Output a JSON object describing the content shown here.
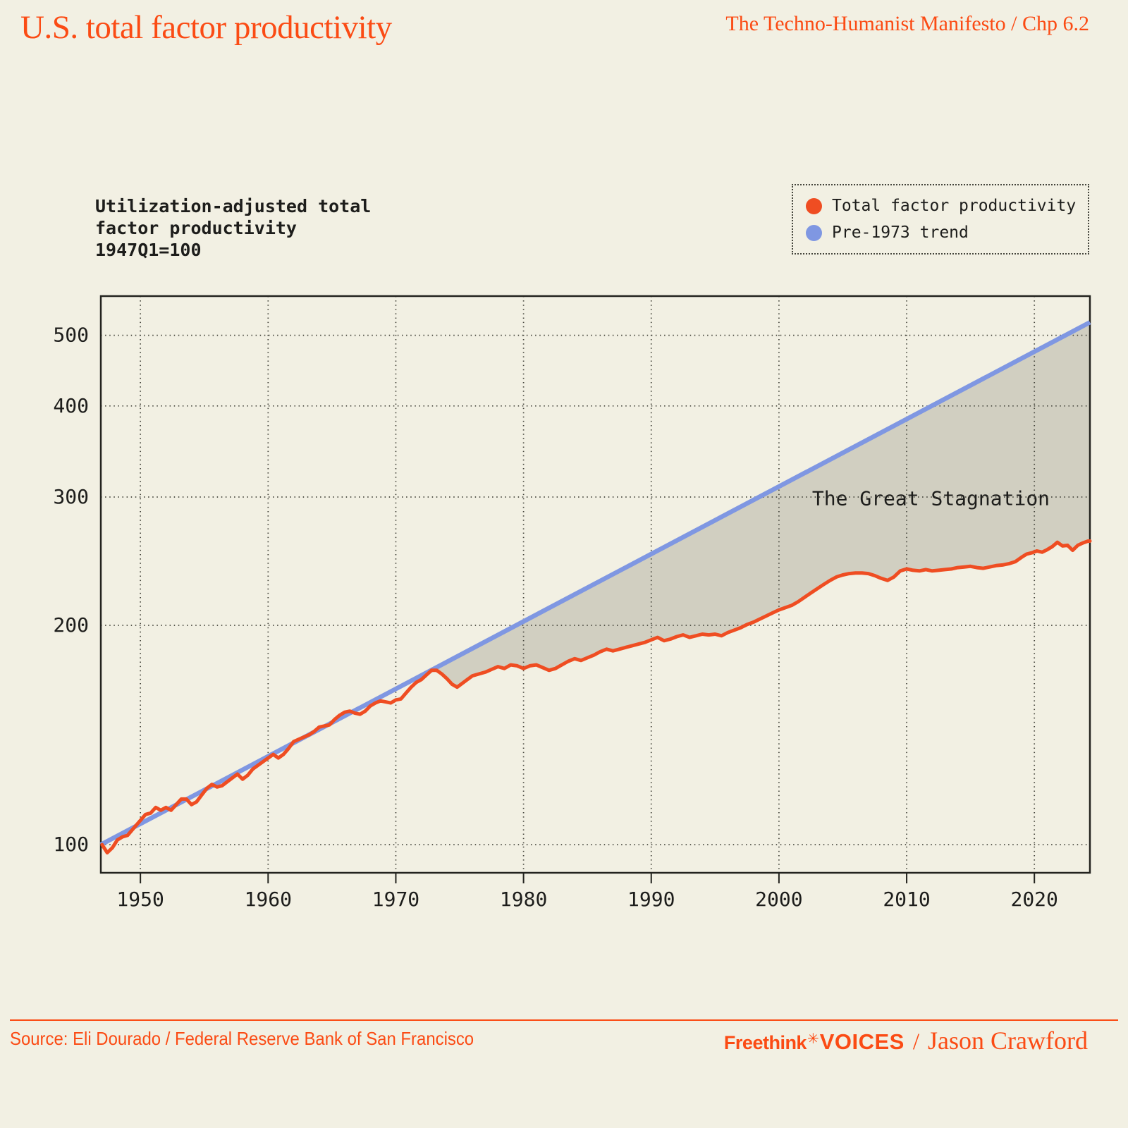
{
  "header": {
    "title": "U.S. total factor productivity",
    "reference": "The Techno-Humanist Manifesto / Chp 6.2"
  },
  "chart": {
    "subtitle_lines": [
      "Utilization-adjusted total",
      "factor productivity",
      "1947Q1=100"
    ],
    "legend": [
      {
        "label": "Total factor productivity",
        "color": "#EF4D22"
      },
      {
        "label": "Pre-1973 trend",
        "color": "#7F97E2"
      }
    ]
  },
  "colors": {
    "background": "#F2F0E3",
    "accent": "#FB4B14",
    "ink": "#1d1d1b",
    "tfp_line": "#EF4D22",
    "trend_line": "#7F97E2",
    "stagnation_fill": "#D1CFC1"
  },
  "chart_data": {
    "type": "line",
    "title": "Utilization-adjusted total factor productivity, 1947Q1=100",
    "xlabel": "",
    "ylabel": "",
    "y_scale": "log",
    "grid": true,
    "xlim": [
      1946.9,
      2024.35
    ],
    "ylim": [
      91.5,
      566
    ],
    "xticks": [
      1950,
      1960,
      1970,
      1980,
      1990,
      2000,
      2010,
      2020
    ],
    "yticks": [
      100,
      200,
      300,
      400,
      500
    ],
    "annotation": {
      "text": "The Great Stagnation",
      "year": 2011.9,
      "value": 299
    },
    "stagnation": {
      "from_year": 1972.8,
      "color": "#D1CFC1"
    },
    "series": [
      {
        "name": "Total factor productivity",
        "color": "#EF4D22",
        "points": [
          [
            1947.0,
            100
          ],
          [
            1947.4,
            97.5
          ],
          [
            1947.8,
            99
          ],
          [
            1948.2,
            101.5
          ],
          [
            1948.6,
            102.5
          ],
          [
            1949.0,
            103
          ],
          [
            1949.5,
            105.5
          ],
          [
            1950.0,
            108
          ],
          [
            1950.4,
            110
          ],
          [
            1950.8,
            110.5
          ],
          [
            1951.2,
            112.5
          ],
          [
            1951.6,
            111.5
          ],
          [
            1952.0,
            112.5
          ],
          [
            1952.4,
            111.5
          ],
          [
            1952.8,
            113.5
          ],
          [
            1953.2,
            115.5
          ],
          [
            1953.6,
            115.5
          ],
          [
            1954.0,
            113.5
          ],
          [
            1954.4,
            114.5
          ],
          [
            1954.8,
            117
          ],
          [
            1955.2,
            119.5
          ],
          [
            1955.6,
            121
          ],
          [
            1956.0,
            120
          ],
          [
            1956.4,
            120.5
          ],
          [
            1956.8,
            122
          ],
          [
            1957.2,
            123.5
          ],
          [
            1957.6,
            125
          ],
          [
            1958.0,
            123
          ],
          [
            1958.4,
            124.5
          ],
          [
            1958.8,
            127
          ],
          [
            1959.2,
            128.5
          ],
          [
            1959.6,
            130
          ],
          [
            1960.0,
            131.5
          ],
          [
            1960.4,
            133
          ],
          [
            1960.8,
            131.5
          ],
          [
            1961.2,
            133
          ],
          [
            1961.6,
            135.5
          ],
          [
            1962.0,
            138.5
          ],
          [
            1962.4,
            139.5
          ],
          [
            1962.8,
            140.5
          ],
          [
            1963.2,
            141.5
          ],
          [
            1963.6,
            143
          ],
          [
            1964.0,
            145
          ],
          [
            1964.4,
            145.5
          ],
          [
            1964.8,
            146
          ],
          [
            1965.2,
            148.5
          ],
          [
            1965.6,
            150.5
          ],
          [
            1966.0,
            152
          ],
          [
            1966.4,
            152.5
          ],
          [
            1966.8,
            151.5
          ],
          [
            1967.2,
            151
          ],
          [
            1967.6,
            152.5
          ],
          [
            1968.0,
            155
          ],
          [
            1968.4,
            156.5
          ],
          [
            1968.8,
            157.5
          ],
          [
            1969.2,
            157
          ],
          [
            1969.6,
            156.5
          ],
          [
            1970.0,
            158
          ],
          [
            1970.4,
            158.5
          ],
          [
            1970.8,
            161.5
          ],
          [
            1971.2,
            164.5
          ],
          [
            1971.6,
            167
          ],
          [
            1972.0,
            168.5
          ],
          [
            1972.4,
            171
          ],
          [
            1972.8,
            173.5
          ],
          [
            1973.2,
            173.5
          ],
          [
            1973.6,
            171.5
          ],
          [
            1974.0,
            169
          ],
          [
            1974.4,
            166
          ],
          [
            1974.8,
            164.5
          ],
          [
            1975.2,
            166.5
          ],
          [
            1975.6,
            168.5
          ],
          [
            1976.0,
            170.5
          ],
          [
            1976.5,
            171.5
          ],
          [
            1977.0,
            172.5
          ],
          [
            1977.5,
            174
          ],
          [
            1978.0,
            175.5
          ],
          [
            1978.5,
            174.5
          ],
          [
            1979.0,
            176.5
          ],
          [
            1979.5,
            176
          ],
          [
            1980.0,
            174.5
          ],
          [
            1980.5,
            176
          ],
          [
            1981.0,
            176.5
          ],
          [
            1981.5,
            175
          ],
          [
            1982.0,
            173.5
          ],
          [
            1982.5,
            174.5
          ],
          [
            1983.0,
            176.5
          ],
          [
            1983.5,
            178.5
          ],
          [
            1984.0,
            180
          ],
          [
            1984.5,
            179
          ],
          [
            1985.0,
            180.5
          ],
          [
            1985.5,
            182
          ],
          [
            1986.0,
            184
          ],
          [
            1986.5,
            185.5
          ],
          [
            1987.0,
            184.5
          ],
          [
            1987.5,
            185.5
          ],
          [
            1988.0,
            186.5
          ],
          [
            1988.5,
            187.5
          ],
          [
            1989.0,
            188.5
          ],
          [
            1989.5,
            189.5
          ],
          [
            1990.0,
            191
          ],
          [
            1990.5,
            192.5
          ],
          [
            1991.0,
            190.5
          ],
          [
            1991.5,
            191.5
          ],
          [
            1992.0,
            193
          ],
          [
            1992.5,
            194
          ],
          [
            1993.0,
            192.5
          ],
          [
            1993.5,
            193.5
          ],
          [
            1994.0,
            194.5
          ],
          [
            1994.5,
            194
          ],
          [
            1995.0,
            194.5
          ],
          [
            1995.5,
            193.5
          ],
          [
            1996.0,
            195.5
          ],
          [
            1996.5,
            197
          ],
          [
            1997.0,
            198.5
          ],
          [
            1997.5,
            200.5
          ],
          [
            1998.0,
            202
          ],
          [
            1998.5,
            204
          ],
          [
            1999.0,
            206
          ],
          [
            1999.5,
            208
          ],
          [
            2000.0,
            210
          ],
          [
            2000.5,
            211.5
          ],
          [
            2001.0,
            213
          ],
          [
            2001.5,
            215.5
          ],
          [
            2002.0,
            218.5
          ],
          [
            2002.5,
            221.5
          ],
          [
            2003.0,
            224.5
          ],
          [
            2003.5,
            227.5
          ],
          [
            2004.0,
            230.5
          ],
          [
            2004.5,
            233
          ],
          [
            2005.0,
            234.5
          ],
          [
            2005.5,
            235.5
          ],
          [
            2006.0,
            236
          ],
          [
            2006.5,
            236
          ],
          [
            2007.0,
            235.5
          ],
          [
            2007.5,
            234
          ],
          [
            2008.0,
            232
          ],
          [
            2008.5,
            230.5
          ],
          [
            2009.0,
            233
          ],
          [
            2009.5,
            237.5
          ],
          [
            2010.0,
            239
          ],
          [
            2010.5,
            238
          ],
          [
            2011.0,
            237.5
          ],
          [
            2011.5,
            238.5
          ],
          [
            2012.0,
            237.5
          ],
          [
            2012.5,
            238
          ],
          [
            2013.0,
            238.5
          ],
          [
            2013.5,
            239
          ],
          [
            2014.0,
            240
          ],
          [
            2014.5,
            240.5
          ],
          [
            2015.0,
            241
          ],
          [
            2015.5,
            240
          ],
          [
            2016.0,
            239.5
          ],
          [
            2016.5,
            240.5
          ],
          [
            2017.0,
            241.5
          ],
          [
            2017.5,
            242
          ],
          [
            2018.0,
            243
          ],
          [
            2018.5,
            244.5
          ],
          [
            2019.0,
            248
          ],
          [
            2019.4,
            250.5
          ],
          [
            2019.8,
            251.5
          ],
          [
            2020.2,
            253
          ],
          [
            2020.6,
            252
          ],
          [
            2021.0,
            254
          ],
          [
            2021.4,
            256.5
          ],
          [
            2021.8,
            260
          ],
          [
            2022.2,
            257
          ],
          [
            2022.6,
            257.5
          ],
          [
            2023.0,
            253.5
          ],
          [
            2023.4,
            257.5
          ],
          [
            2023.8,
            259.5
          ],
          [
            2024.2,
            261
          ],
          [
            2024.35,
            261
          ]
        ]
      },
      {
        "name": "Pre-1973 trend",
        "color": "#7F97E2",
        "points": [
          [
            1946.9,
            100
          ],
          [
            2024.35,
            521
          ]
        ]
      }
    ]
  },
  "footer": {
    "source": "Source: Eli Dourado / Federal Reserve Bank of San Francisco",
    "brand_freethink": "Freethink",
    "brand_star": "✳",
    "brand_voices": "VOICES",
    "brand_divider": "/",
    "author": "Jason Crawford"
  }
}
